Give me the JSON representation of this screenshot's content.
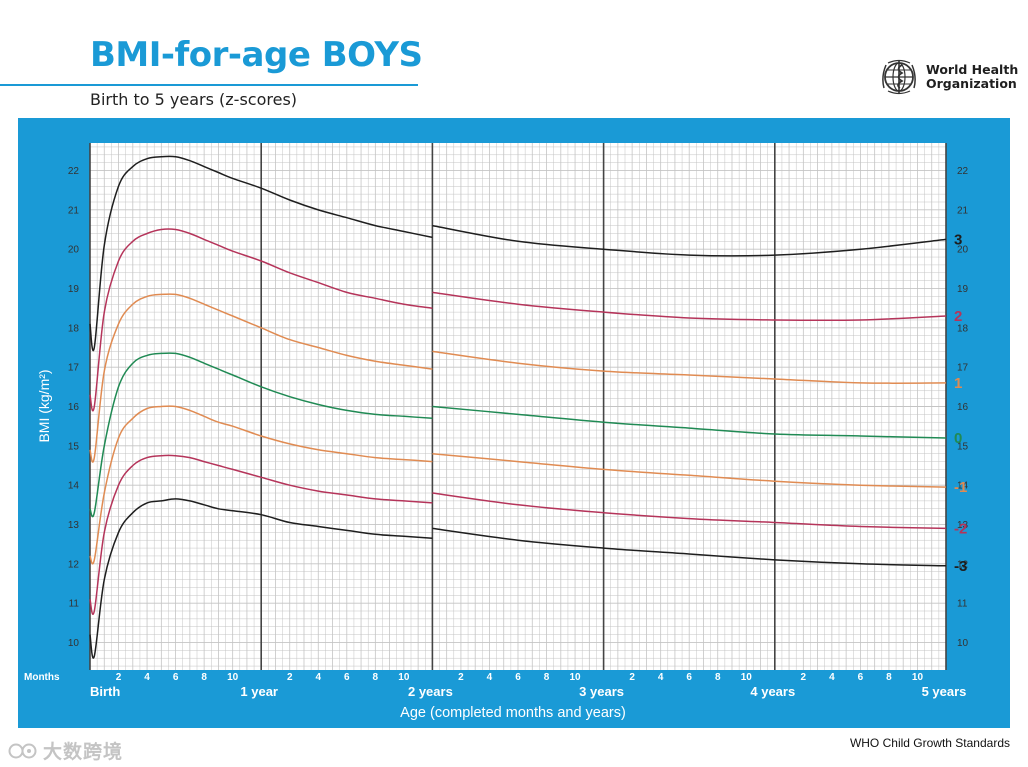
{
  "header": {
    "title": "BMI-for-age BOYS",
    "subtitle": "Birth to 5 years (z-scores)",
    "org_line1": "World Health",
    "org_line2": "Organization"
  },
  "footer": {
    "source": "WHO Child Growth Standards",
    "watermark": "大数跨境"
  },
  "chart_data": {
    "type": "line",
    "title": "BMI-for-age BOYS",
    "subtitle": "Birth to 5 years (z-scores)",
    "xlabel": "Age (completed months and years)",
    "ylabel": "BMI (kg/m²)",
    "x_unit": "months",
    "xlim": [
      0,
      60
    ],
    "ylim": [
      9.3,
      22.7
    ],
    "y_ticks": [
      10,
      11,
      12,
      13,
      14,
      15,
      16,
      17,
      18,
      19,
      20,
      21,
      22
    ],
    "months_label": "Months",
    "month_ticks": [
      "2",
      "4",
      "6",
      "8",
      "10"
    ],
    "year_labels": [
      "Birth",
      "1 year",
      "2 years",
      "3 years",
      "4 years",
      "5 years"
    ],
    "grid": true,
    "colors": {
      "frame": "#1a9ad6",
      "plot_bg": "#ffffff",
      "grid": "#c4c4c4",
      "major_grid": "#444444"
    },
    "series": [
      {
        "name": "3",
        "color": "#1e1e1e",
        "part1": {
          "x": [
            0,
            0.3,
            1,
            2,
            3,
            4,
            5,
            6,
            7,
            8,
            9,
            10,
            12,
            14,
            16,
            18,
            20,
            22,
            24
          ],
          "y": [
            18.1,
            17.5,
            20.1,
            21.6,
            22.1,
            22.3,
            22.35,
            22.35,
            22.25,
            22.1,
            21.95,
            21.8,
            21.55,
            21.25,
            21.0,
            20.8,
            20.6,
            20.45,
            20.3
          ]
        },
        "part2": {
          "x": [
            24,
            30,
            36,
            42,
            48,
            54,
            60
          ],
          "y": [
            20.6,
            20.2,
            20.0,
            19.85,
            19.85,
            20.0,
            20.25
          ]
        }
      },
      {
        "name": "2",
        "color": "#b5345a",
        "part1": {
          "x": [
            0,
            0.3,
            1,
            2,
            3,
            4,
            5,
            6,
            7,
            8,
            9,
            10,
            12,
            14,
            16,
            18,
            20,
            22,
            24
          ],
          "y": [
            16.3,
            16.0,
            18.4,
            19.7,
            20.2,
            20.4,
            20.5,
            20.5,
            20.4,
            20.25,
            20.1,
            19.95,
            19.7,
            19.4,
            19.15,
            18.9,
            18.75,
            18.6,
            18.5
          ]
        },
        "part2": {
          "x": [
            24,
            30,
            36,
            42,
            48,
            54,
            60
          ],
          "y": [
            18.9,
            18.6,
            18.4,
            18.25,
            18.2,
            18.2,
            18.3
          ]
        }
      },
      {
        "name": "1",
        "color": "#e08b52",
        "part1": {
          "x": [
            0,
            0.3,
            1,
            2,
            3,
            4,
            5,
            6,
            7,
            8,
            9,
            10,
            12,
            14,
            16,
            18,
            20,
            22,
            24
          ],
          "y": [
            14.9,
            14.7,
            16.9,
            18.1,
            18.6,
            18.8,
            18.85,
            18.85,
            18.75,
            18.6,
            18.45,
            18.3,
            18.0,
            17.7,
            17.5,
            17.3,
            17.15,
            17.05,
            16.95
          ]
        },
        "part2": {
          "x": [
            24,
            30,
            36,
            42,
            48,
            54,
            60
          ],
          "y": [
            17.4,
            17.1,
            16.9,
            16.8,
            16.7,
            16.6,
            16.6
          ]
        }
      },
      {
        "name": "0",
        "color": "#208a54",
        "part1": {
          "x": [
            0,
            0.3,
            1,
            2,
            3,
            4,
            5,
            6,
            7,
            8,
            9,
            10,
            12,
            14,
            16,
            18,
            20,
            22,
            24
          ],
          "y": [
            13.4,
            13.3,
            15.0,
            16.5,
            17.1,
            17.3,
            17.35,
            17.35,
            17.25,
            17.1,
            16.95,
            16.8,
            16.5,
            16.25,
            16.05,
            15.9,
            15.8,
            15.75,
            15.7
          ]
        },
        "part2": {
          "x": [
            24,
            30,
            36,
            42,
            48,
            54,
            60
          ],
          "y": [
            16.0,
            15.8,
            15.6,
            15.45,
            15.3,
            15.25,
            15.2
          ]
        }
      },
      {
        "name": "-1",
        "color": "#e08b52",
        "part1": {
          "x": [
            0,
            0.3,
            1,
            2,
            3,
            4,
            5,
            6,
            7,
            8,
            9,
            10,
            12,
            14,
            16,
            18,
            20,
            22,
            24
          ],
          "y": [
            12.2,
            12.1,
            13.8,
            15.2,
            15.7,
            15.95,
            16.0,
            16.0,
            15.9,
            15.75,
            15.6,
            15.5,
            15.25,
            15.05,
            14.9,
            14.8,
            14.7,
            14.65,
            14.6
          ]
        },
        "part2": {
          "x": [
            24,
            30,
            36,
            42,
            48,
            54,
            60
          ],
          "y": [
            14.8,
            14.6,
            14.4,
            14.25,
            14.1,
            14.0,
            13.95
          ]
        }
      },
      {
        "name": "-2",
        "color": "#b5345a",
        "part1": {
          "x": [
            0,
            0.3,
            1,
            2,
            3,
            4,
            5,
            6,
            7,
            8,
            9,
            10,
            12,
            14,
            16,
            18,
            20,
            22,
            24
          ],
          "y": [
            11.1,
            10.8,
            12.8,
            14.0,
            14.5,
            14.7,
            14.75,
            14.75,
            14.7,
            14.6,
            14.5,
            14.4,
            14.2,
            14.0,
            13.85,
            13.75,
            13.65,
            13.6,
            13.55
          ]
        },
        "part2": {
          "x": [
            24,
            30,
            36,
            42,
            48,
            54,
            60
          ],
          "y": [
            13.8,
            13.5,
            13.3,
            13.15,
            13.05,
            12.95,
            12.9
          ]
        }
      },
      {
        "name": "-3",
        "color": "#1e1e1e",
        "part1": {
          "x": [
            0,
            0.3,
            1,
            2,
            3,
            4,
            5,
            6,
            7,
            8,
            9,
            10,
            12,
            14,
            16,
            18,
            20,
            22,
            24
          ],
          "y": [
            10.2,
            9.65,
            11.6,
            12.8,
            13.3,
            13.55,
            13.6,
            13.65,
            13.6,
            13.5,
            13.4,
            13.35,
            13.25,
            13.05,
            12.95,
            12.85,
            12.75,
            12.7,
            12.65
          ]
        },
        "part2": {
          "x": [
            24,
            30,
            36,
            42,
            48,
            54,
            60
          ],
          "y": [
            12.9,
            12.6,
            12.4,
            12.25,
            12.1,
            12.0,
            11.95
          ]
        }
      }
    ]
  }
}
